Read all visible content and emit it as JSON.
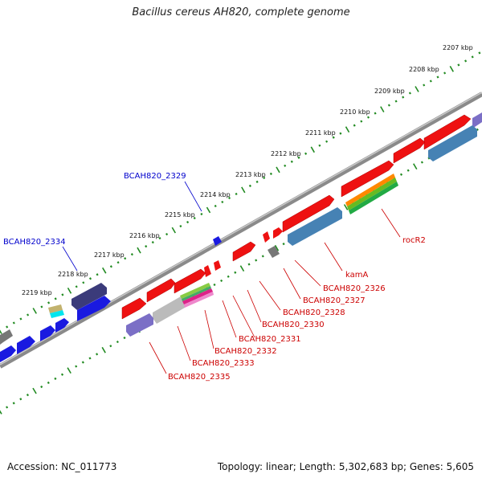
{
  "title": "Bacillus cereus AH820, complete genome",
  "footer": {
    "accession": "Accession: NC_011773",
    "summary": "Topology: linear; Length: 5,302,683 bp; Genes: 5,605"
  },
  "ruler_labels": [
    "2207 kbp",
    "2208 kbp",
    "2209 kbp",
    "2210 kbp",
    "2211 kbp",
    "2212 kbp",
    "2213 kbp",
    "2214 kbp",
    "2215 kbp",
    "2216 kbp",
    "2217 kbp",
    "2218 kbp",
    "2219 kbp"
  ],
  "gene_labels_top": [
    "BCAH820_2329",
    "BCAH820_2334"
  ],
  "gene_labels_bottom": [
    "rocR2",
    "kamA",
    "BCAH820_2326",
    "BCAH820_2327",
    "BCAH820_2328",
    "BCAH820_2330",
    "BCAH820_2331",
    "BCAH820_2332",
    "BCAH820_2333",
    "BCAH820_2335"
  ],
  "colors": {
    "cds": "#ff0000",
    "label_top": "#0000cc",
    "label_bottom": "#cc0000",
    "ruler": "#228b22",
    "backbone": "#888888"
  }
}
